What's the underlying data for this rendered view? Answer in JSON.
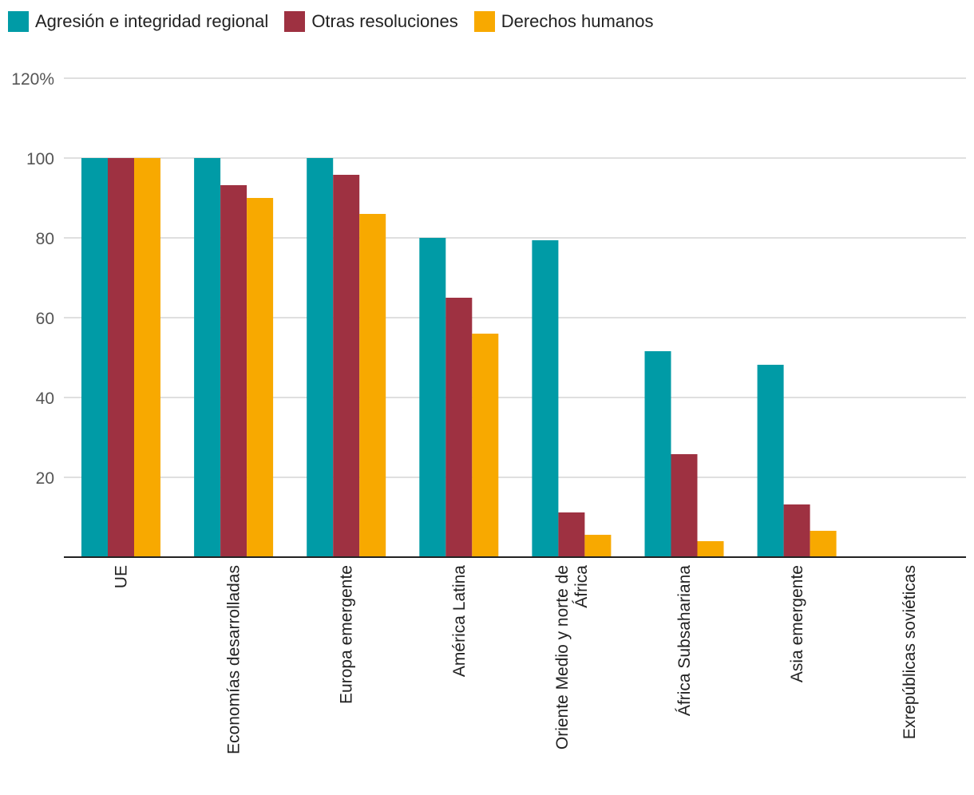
{
  "chart_data": {
    "type": "bar",
    "title": "",
    "xlabel": "",
    "ylabel": "",
    "ylim": [
      0,
      120
    ],
    "yticks": [
      {
        "value": 120,
        "label": "120%"
      },
      {
        "value": 100,
        "label": "100"
      },
      {
        "value": 80,
        "label": "80"
      },
      {
        "value": 60,
        "label": "60"
      },
      {
        "value": 40,
        "label": "40"
      },
      {
        "value": 20,
        "label": "20"
      }
    ],
    "grid": true,
    "legend_position": "top-left",
    "categories": [
      [
        "UE"
      ],
      [
        "Economías desarrolladas"
      ],
      [
        "Europa emergente"
      ],
      [
        "América Latina"
      ],
      [
        "Oriente Medio y norte de",
        "África"
      ],
      [
        "África Subsahariana"
      ],
      [
        "Asia emergente"
      ],
      [
        "Exrepúblicas soviéticas"
      ]
    ],
    "series": [
      {
        "name": "Agresión e integridad regional",
        "color": "#009ba6",
        "values": [
          100,
          100,
          100,
          80,
          79.4,
          51.6,
          48.2,
          0
        ]
      },
      {
        "name": "Otras resoluciones",
        "color": "#9e3141",
        "values": [
          100,
          93.2,
          95.8,
          65,
          11.2,
          25.8,
          13.2,
          0
        ]
      },
      {
        "name": "Derechos humanos",
        "color": "#f8a900",
        "values": [
          100,
          90,
          86,
          56,
          5.6,
          4,
          6.6,
          0
        ]
      }
    ]
  }
}
